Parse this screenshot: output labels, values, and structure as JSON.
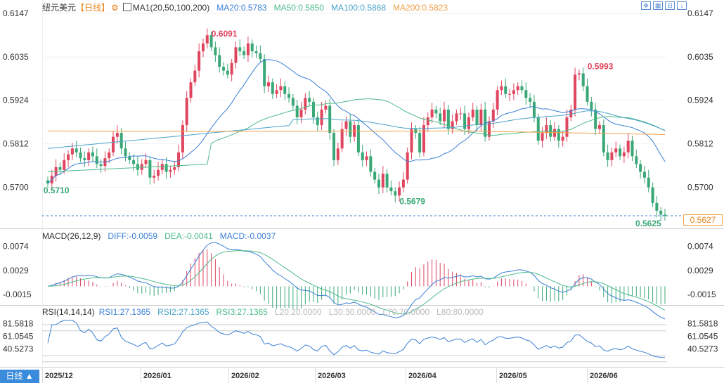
{
  "header": {
    "symbol": "纽元美元",
    "period_tag": "【日线】",
    "gear_icon": "gear-icon",
    "ma_name": "MA1(20,50,100,200)",
    "ma": [
      {
        "label": "MA20:0.5783",
        "color": "#3a7fd5"
      },
      {
        "label": "MA50:0.5850",
        "color": "#4dbb8a"
      },
      {
        "label": "MA100:0.5868",
        "color": "#4aa3c8"
      },
      {
        "label": "MA200:0.5823",
        "color": "#f0a048"
      }
    ]
  },
  "toolbar": {
    "icons": [
      "expand-icon",
      "grid-icon",
      "collapse-icon",
      "down-arrow-icon"
    ]
  },
  "price_axis": {
    "ticks": [
      "0.6147",
      "0.6035",
      "0.5924",
      "0.5812",
      "0.5700"
    ],
    "current": "0.5627"
  },
  "annotations": {
    "high": "0.6091",
    "low1": "0.5710",
    "low2": "0.5679",
    "high2": "0.5993",
    "last_low": "0.5625"
  },
  "macd": {
    "name": "MACD(26,12,9)",
    "diff": "DIFF:-0.0059",
    "dea": "DEA:-0.0041",
    "macd": "MACD:-0.0037",
    "ticks": [
      "0.0074",
      "0.0029",
      "-0.0015"
    ]
  },
  "rsi": {
    "name": "RSI(14,14,14)",
    "rsi1": "RSI1:27.1365",
    "rsi2": "RSI2:27.1365",
    "rsi3": "RSI3:27.1365",
    "l20": "L20:20.0000",
    "l30": "L30:30.0000",
    "l70": "L70:70.0000",
    "l80": "L80:80.0000",
    "ticks": [
      "81.5818",
      "61.0545",
      "40.5273"
    ]
  },
  "time_axis": [
    "2025/12",
    "2026/01",
    "2026/02",
    "2026/03",
    "2026/04",
    "2026/05",
    "2026/06"
  ],
  "period_button": "日线 ▲",
  "colors": {
    "up": "#e0455e",
    "down": "#3aa876",
    "diff": "#3a7fd5",
    "dea": "#4dbb8a",
    "rsi": "#3a7fd5"
  },
  "chart_data": {
    "type": "candlestick",
    "title": "纽元美元 日线",
    "series_close": [
      0.571,
      0.573,
      0.5752,
      0.5745,
      0.577,
      0.5785,
      0.58,
      0.579,
      0.5775,
      0.577,
      0.579,
      0.578,
      0.576,
      0.5755,
      0.5775,
      0.579,
      0.583,
      0.584,
      0.58,
      0.578,
      0.577,
      0.576,
      0.5745,
      0.576,
      0.577,
      0.5725,
      0.573,
      0.5745,
      0.576,
      0.574,
      0.5745,
      0.5752,
      0.579,
      0.586,
      0.593,
      0.597,
      0.6,
      0.605,
      0.607,
      0.6091,
      0.606,
      0.604,
      0.601,
      0.6,
      0.599,
      0.602,
      0.606,
      0.605,
      0.604,
      0.607,
      0.605,
      0.6045,
      0.603,
      0.596,
      0.597,
      0.594,
      0.595,
      0.596,
      0.594,
      0.593,
      0.591,
      0.588,
      0.59,
      0.593,
      0.592,
      0.588,
      0.586,
      0.59,
      0.591,
      0.584,
      0.577,
      0.58,
      0.585,
      0.587,
      0.583,
      0.586,
      0.579,
      0.577,
      0.578,
      0.574,
      0.572,
      0.57,
      0.5735,
      0.57,
      0.569,
      0.5679,
      0.57,
      0.572,
      0.579,
      0.585,
      0.584,
      0.579,
      0.586,
      0.588,
      0.59,
      0.589,
      0.587,
      0.59,
      0.585,
      0.587,
      0.589,
      0.589,
      0.585,
      0.588,
      0.59,
      0.586,
      0.59,
      0.583,
      0.587,
      0.59,
      0.595,
      0.596,
      0.594,
      0.594,
      0.595,
      0.596,
      0.595,
      0.593,
      0.592,
      0.588,
      0.582,
      0.584,
      0.586,
      0.583,
      0.585,
      0.582,
      0.583,
      0.588,
      0.59,
      0.599,
      0.5993,
      0.596,
      0.592,
      0.59,
      0.585,
      0.586,
      0.579,
      0.577,
      0.579,
      0.58,
      0.578,
      0.579,
      0.582,
      0.578,
      0.576,
      0.574,
      0.5725,
      0.57,
      0.566,
      0.564,
      0.563,
      0.5627
    ]
  }
}
